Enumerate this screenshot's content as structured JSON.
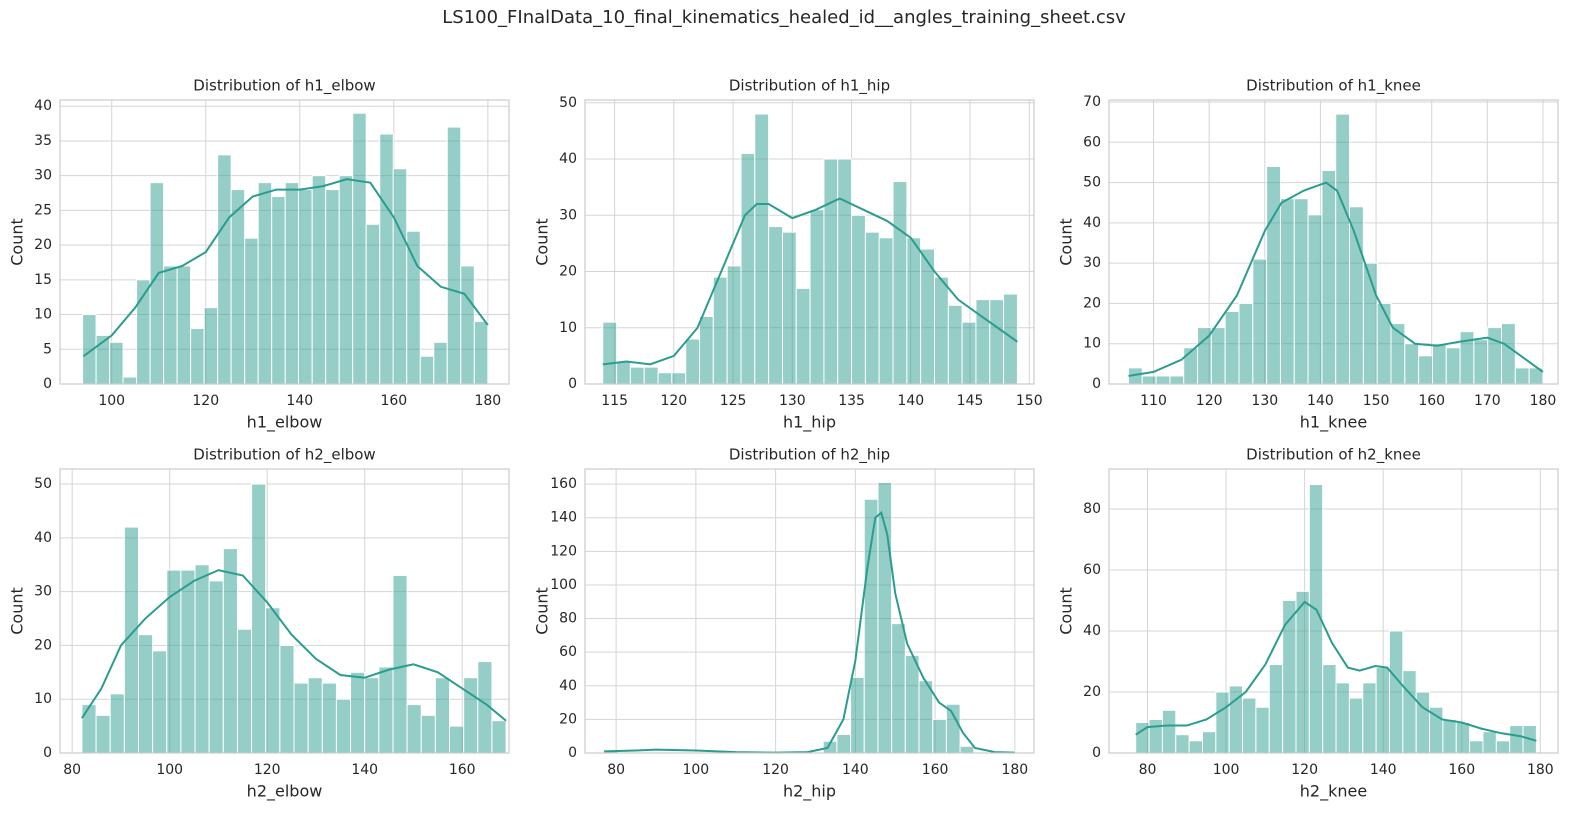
{
  "title": "LS100_FInalData_10_final_kinematics_healed_id__angles_training_sheet.csv",
  "chart_data": [
    {
      "type": "histogram",
      "title": "Distribution of h1_elbow",
      "xlabel": "h1_elbow",
      "ylabel": "Count",
      "bins": [
        93.8,
        96.67,
        99.55,
        102.42,
        105.29,
        108.17,
        111.04,
        113.91,
        116.78,
        119.66,
        122.53,
        125.4,
        128.28,
        131.15,
        134.02,
        136.9,
        139.77,
        142.64,
        145.51,
        148.39,
        151.26,
        154.13,
        157.01,
        159.88,
        162.75,
        165.63,
        168.5,
        171.37,
        174.24,
        177.12,
        180
      ],
      "counts": [
        10,
        7,
        6,
        1,
        15,
        29,
        17,
        17,
        8,
        11,
        33,
        28,
        21,
        29,
        27,
        29,
        28,
        30,
        28,
        30,
        39,
        23,
        36,
        31,
        22,
        4,
        6,
        37,
        17,
        9
      ],
      "kde": {
        "x": [
          94,
          100,
          105,
          110,
          115,
          120,
          125,
          130,
          135,
          140,
          145,
          150,
          155,
          160,
          165,
          170,
          175,
          180
        ],
        "y": [
          4,
          7,
          11,
          16,
          17,
          19,
          24,
          27,
          28,
          28,
          28.5,
          29.5,
          29,
          24,
          17,
          14,
          13,
          8.5
        ]
      },
      "color": "#2a9d8f",
      "grid": true,
      "xlim": [
        89,
        184.5
      ],
      "xticks": [
        100,
        120,
        140,
        160,
        180
      ],
      "ylim": [
        0,
        40.9
      ],
      "yticks": [
        0,
        5,
        10,
        15,
        20,
        25,
        30,
        35,
        40
      ]
    },
    {
      "type": "histogram",
      "title": "Distribution of h1_hip",
      "xlabel": "h1_hip",
      "ylabel": "Count",
      "bins": [
        114,
        115.17,
        116.33,
        117.5,
        118.67,
        119.83,
        121,
        122.17,
        123.33,
        124.5,
        125.67,
        126.83,
        128,
        129.17,
        130.33,
        131.5,
        132.67,
        133.83,
        135,
        136.17,
        137.33,
        138.5,
        139.67,
        140.83,
        142,
        143.17,
        144.33,
        145.5,
        146.67,
        147.83,
        149
      ],
      "counts": [
        11,
        4,
        3,
        3,
        2,
        2,
        8,
        12,
        19,
        21,
        41,
        48,
        28,
        27,
        17,
        31,
        40,
        40,
        30,
        27,
        26,
        36,
        26,
        24,
        19,
        14,
        11,
        15,
        15,
        16
      ],
      "kde": {
        "x": [
          114,
          116,
          118,
          120,
          122,
          124,
          126,
          127,
          128,
          130,
          132,
          134,
          136,
          138,
          140,
          142,
          144,
          146,
          149
        ],
        "y": [
          3.5,
          4,
          3.5,
          5,
          10,
          20,
          30,
          32,
          32,
          29.5,
          31,
          33,
          31,
          29,
          26,
          20,
          15,
          12,
          7.5
        ]
      },
      "color": "#2a9d8f",
      "grid": true,
      "xlim": [
        112.5,
        150.4
      ],
      "xticks": [
        115,
        120,
        125,
        130,
        135,
        140,
        145,
        150
      ],
      "ylim": [
        0,
        50.5
      ],
      "yticks": [
        0,
        10,
        20,
        30,
        40,
        50
      ]
    },
    {
      "type": "histogram",
      "title": "Distribution of h1_knee",
      "xlabel": "h1_knee",
      "ylabel": "Count",
      "bins": [
        105.5,
        107.98,
        110.47,
        112.95,
        115.43,
        117.92,
        120.4,
        122.88,
        125.37,
        127.85,
        130.33,
        132.82,
        135.3,
        137.78,
        140.27,
        142.75,
        145.23,
        147.72,
        150.2,
        152.68,
        155.17,
        157.65,
        160.13,
        162.62,
        165.1,
        167.58,
        170.07,
        172.55,
        175.03,
        177.52,
        180
      ],
      "counts": [
        4,
        2,
        2,
        2,
        9,
        14,
        14,
        18,
        20,
        31,
        54,
        46,
        46,
        42,
        53,
        67,
        44,
        30,
        20,
        15,
        10,
        7,
        10,
        9,
        13,
        11,
        14,
        15,
        4,
        4
      ],
      "kde": {
        "x": [
          105.5,
          110,
          115,
          120,
          125,
          130,
          133,
          137,
          141,
          143,
          146,
          150,
          153,
          157,
          161,
          165,
          170,
          173,
          177,
          180
        ],
        "y": [
          2,
          3,
          6,
          12,
          22,
          38,
          45,
          48,
          50,
          48,
          38,
          22,
          14,
          10,
          9.5,
          10.5,
          11.5,
          10,
          6,
          3
        ]
      },
      "color": "#2a9d8f",
      "grid": true,
      "xlim": [
        102,
        182.7
      ],
      "xticks": [
        110,
        120,
        130,
        140,
        150,
        160,
        170,
        180
      ],
      "ylim": [
        0,
        70.5
      ],
      "yticks": [
        0,
        10,
        20,
        30,
        40,
        50,
        60,
        70
      ]
    },
    {
      "type": "histogram",
      "title": "Distribution of h2_elbow",
      "xlabel": "h2_elbow",
      "ylabel": "Count",
      "bins": [
        82,
        84.9,
        87.8,
        90.7,
        93.6,
        96.5,
        99.4,
        102.3,
        105.2,
        108.1,
        111,
        113.9,
        116.8,
        119.7,
        122.6,
        125.5,
        128.4,
        131.3,
        134.2,
        137.1,
        140,
        142.9,
        145.8,
        148.7,
        151.6,
        154.5,
        157.4,
        160.3,
        163.2,
        166.1,
        169
      ],
      "counts": [
        9,
        7,
        11,
        42,
        22,
        19,
        34,
        34,
        35,
        32,
        38,
        23,
        50,
        27,
        20,
        13,
        14,
        13,
        10,
        15,
        14,
        16,
        33,
        9,
        7,
        14,
        5,
        14,
        17,
        6
      ],
      "kde": {
        "x": [
          82,
          86,
          90,
          95,
          100,
          105,
          110,
          115,
          120,
          125,
          130,
          135,
          140,
          145,
          150,
          155,
          160,
          165,
          169
        ],
        "y": [
          6.5,
          12,
          20,
          25,
          29,
          32,
          34,
          33,
          28,
          22,
          17.5,
          14.5,
          14,
          15.5,
          16.5,
          15,
          12,
          9,
          6
        ]
      },
      "color": "#2a9d8f",
      "grid": true,
      "xlim": [
        77.5,
        169.6
      ],
      "xticks": [
        80,
        100,
        120,
        140,
        160
      ],
      "ylim": [
        0,
        52.8
      ],
      "yticks": [
        0,
        10,
        20,
        30,
        40,
        50
      ]
    },
    {
      "type": "histogram",
      "title": "Distribution of h2_hip",
      "xlabel": "h2_hip",
      "ylabel": "Count",
      "bins": [
        77,
        80.43,
        83.87,
        87.3,
        90.73,
        94.17,
        97.6,
        101.03,
        104.47,
        107.9,
        111.33,
        114.77,
        118.2,
        121.63,
        125.07,
        128.5,
        131.93,
        135.37,
        138.8,
        142.23,
        145.67,
        149.1,
        152.53,
        155.97,
        159.4,
        162.83,
        166.27,
        169.7,
        173.13,
        176.57,
        180
      ],
      "counts": [
        1,
        0,
        0,
        0,
        0,
        0,
        0,
        0,
        0,
        0,
        0,
        0,
        0,
        0,
        0,
        0,
        7,
        11,
        45,
        151,
        161,
        77,
        58,
        43,
        20,
        29,
        4,
        0,
        0,
        1
      ],
      "kde": {
        "x": [
          77,
          85,
          90,
          100,
          110,
          120,
          128,
          133,
          137,
          140,
          143,
          145,
          146.5,
          148,
          150,
          153,
          157,
          161,
          164,
          167,
          170,
          175,
          180
        ],
        "y": [
          1,
          1.5,
          2,
          1.5,
          0.5,
          0.2,
          0.5,
          3,
          20,
          55,
          110,
          140,
          143,
          130,
          95,
          65,
          45,
          30,
          25,
          12,
          3,
          0.5,
          0.2
        ]
      },
      "color": "#2a9d8f",
      "grid": true,
      "xlim": [
        72.2,
        184.8
      ],
      "xticks": [
        80,
        100,
        120,
        140,
        160,
        180
      ],
      "ylim": [
        0,
        169
      ],
      "yticks": [
        0,
        20,
        40,
        60,
        80,
        100,
        120,
        140,
        160
      ]
    },
    {
      "type": "histogram",
      "title": "Distribution of h2_knee",
      "xlabel": "h2_knee",
      "ylabel": "Count",
      "bins": [
        77,
        80.4,
        83.8,
        87.2,
        90.6,
        94,
        97.4,
        100.8,
        104.2,
        107.6,
        111,
        114.4,
        117.8,
        121.2,
        124.6,
        128,
        131.4,
        134.8,
        138.2,
        141.6,
        145,
        148.4,
        151.8,
        155.2,
        158.6,
        162,
        165.4,
        168.8,
        172.2,
        175.6,
        179
      ],
      "counts": [
        10,
        11,
        14,
        6,
        4,
        7,
        20,
        22,
        18,
        15,
        29,
        50,
        53,
        88,
        29,
        23,
        18,
        23,
        28,
        40,
        27,
        20,
        15,
        11,
        10,
        4,
        7,
        4,
        9,
        9
      ],
      "kde": {
        "x": [
          77,
          80,
          85,
          90,
          95,
          100,
          105,
          110,
          115,
          120,
          123,
          127,
          131,
          134,
          138,
          141,
          145,
          150,
          155,
          160,
          165,
          170,
          175,
          179
        ],
        "y": [
          6,
          8.5,
          9,
          9,
          11,
          15,
          20,
          29,
          42,
          49.5,
          47,
          36,
          28,
          27,
          28.5,
          28,
          22,
          15,
          11,
          10,
          8,
          6.5,
          5.5,
          4
        ]
      },
      "color": "#2a9d8f",
      "grid": true,
      "xlim": [
        70.2,
        184.5
      ],
      "xticks": [
        80,
        100,
        120,
        140,
        160,
        180
      ],
      "ylim": [
        0,
        93.1
      ],
      "yticks": [
        0,
        20,
        40,
        60,
        80
      ]
    }
  ]
}
